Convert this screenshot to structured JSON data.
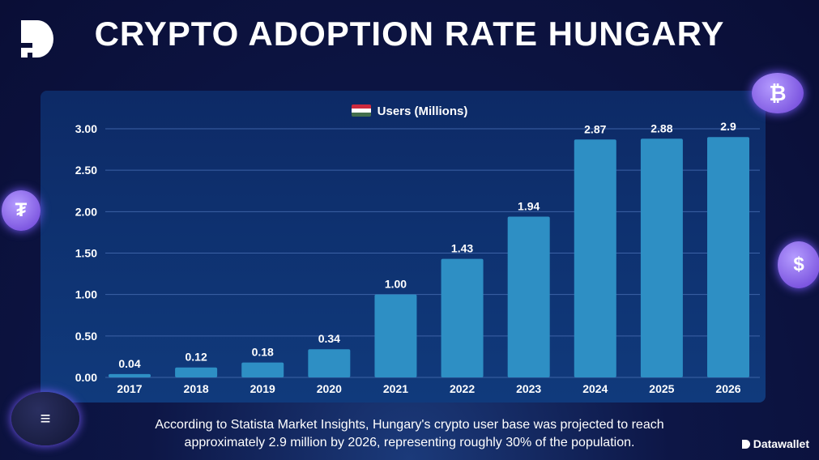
{
  "title": "CRYPTO ADOPTION RATE HUNGARY",
  "brand": "Datawallet",
  "caption": [
    "According to Statista Market Insights, Hungary's crypto user base was projected to reach",
    "approximately 2.9 million by 2026, representing roughly 30% of the population."
  ],
  "colors": {
    "bar": "#2e8fc4",
    "background": "#0a0e36"
  },
  "chart_data": {
    "type": "bar",
    "title": "",
    "legend": "Users (Millions)",
    "legend_position": "top-center",
    "categories": [
      "2017",
      "2018",
      "2019",
      "2020",
      "2021",
      "2022",
      "2023",
      "2024",
      "2025",
      "2026"
    ],
    "values": [
      0.04,
      0.12,
      0.18,
      0.34,
      1.0,
      1.43,
      1.94,
      2.87,
      2.88,
      2.9
    ],
    "labels": [
      "0.04",
      "0.12",
      "0.18",
      "0.34",
      "1.00",
      "1.43",
      "1.94",
      "2.87",
      "2.88",
      "2.9"
    ],
    "yticks": [
      "0.00",
      "0.50",
      "1.00",
      "1.50",
      "2.00",
      "2.50",
      "3.00"
    ],
    "ylim": [
      0,
      3
    ],
    "grid": true,
    "xlabel": "",
    "ylabel": ""
  }
}
